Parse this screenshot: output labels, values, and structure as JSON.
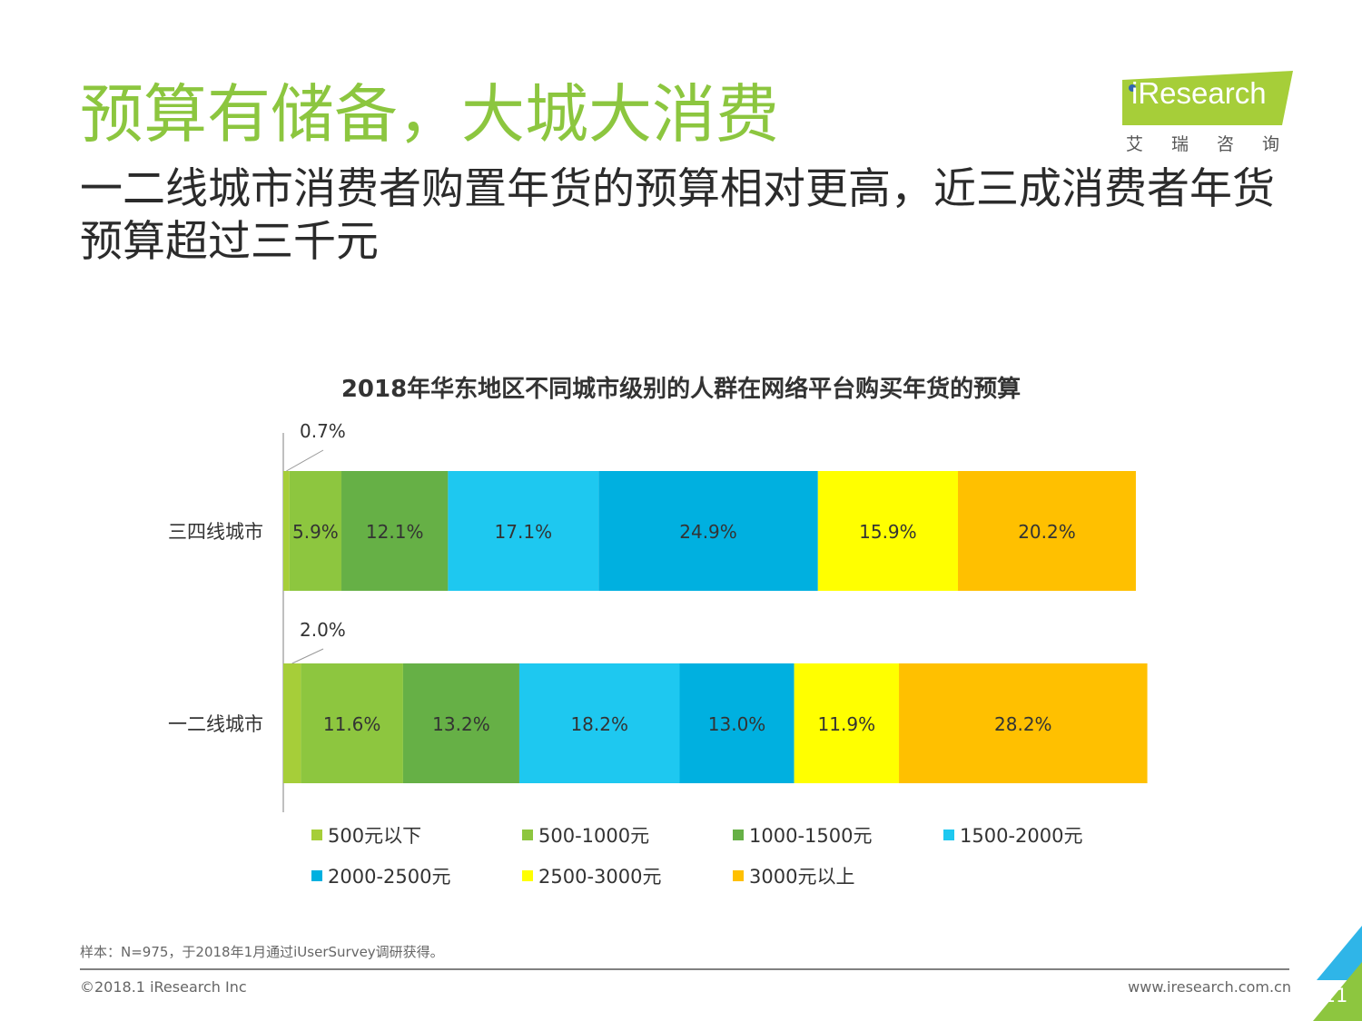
{
  "header": {
    "title": "预算有储备，大城大消费",
    "subtitle": "一二线城市消费者购置年货的预算相对更高，近三成消费者年货预算超过三千元"
  },
  "logo": {
    "brand": "iResearch",
    "cn": "艾瑞咨询"
  },
  "chart_data": {
    "type": "bar",
    "orientation": "horizontal",
    "stacked": true,
    "percent_stacked": true,
    "title": "2018年华东地区不同城市级别的人群在网络平台购买年货的预算",
    "categories": [
      "三四线城市",
      "一二线城市"
    ],
    "series": [
      {
        "name": "500元以下",
        "color": "#a6ce39",
        "values": [
          0.7,
          2.0
        ],
        "labels": [
          "0.7%",
          "2.0%"
        ]
      },
      {
        "name": "500-1000元",
        "color": "#8dc63f",
        "values": [
          5.9,
          11.6
        ],
        "labels": [
          "5.9%",
          "11.6%"
        ]
      },
      {
        "name": "1000-1500元",
        "color": "#66b046",
        "values": [
          12.1,
          13.2
        ],
        "labels": [
          "12.1%",
          "13.2%"
        ]
      },
      {
        "name": "1500-2000元",
        "color": "#1ec8f0",
        "values": [
          17.1,
          18.2
        ],
        "labels": [
          "17.1%",
          "18.2%"
        ]
      },
      {
        "name": "2000-2500元",
        "color": "#00b0e0",
        "values": [
          24.9,
          13.0
        ],
        "labels": [
          "24.9%",
          "13.0%"
        ]
      },
      {
        "name": "2500-3000元",
        "color": "#ffff00",
        "values": [
          15.9,
          11.9
        ],
        "labels": [
          "15.9%",
          "11.9%"
        ]
      },
      {
        "name": "3000元以上",
        "color": "#ffc000",
        "values": [
          20.2,
          28.2
        ],
        "labels": [
          "20.2%",
          "28.2%"
        ]
      }
    ],
    "xlim": [
      0,
      100
    ],
    "grid": false,
    "legend": "bottom"
  },
  "footer": {
    "sample": "样本：N=975，于2018年1月通过iUserSurvey调研获得。",
    "copyright": "©2018.1 iResearch Inc",
    "website": "www.iresearch.com.cn",
    "page": "11"
  }
}
